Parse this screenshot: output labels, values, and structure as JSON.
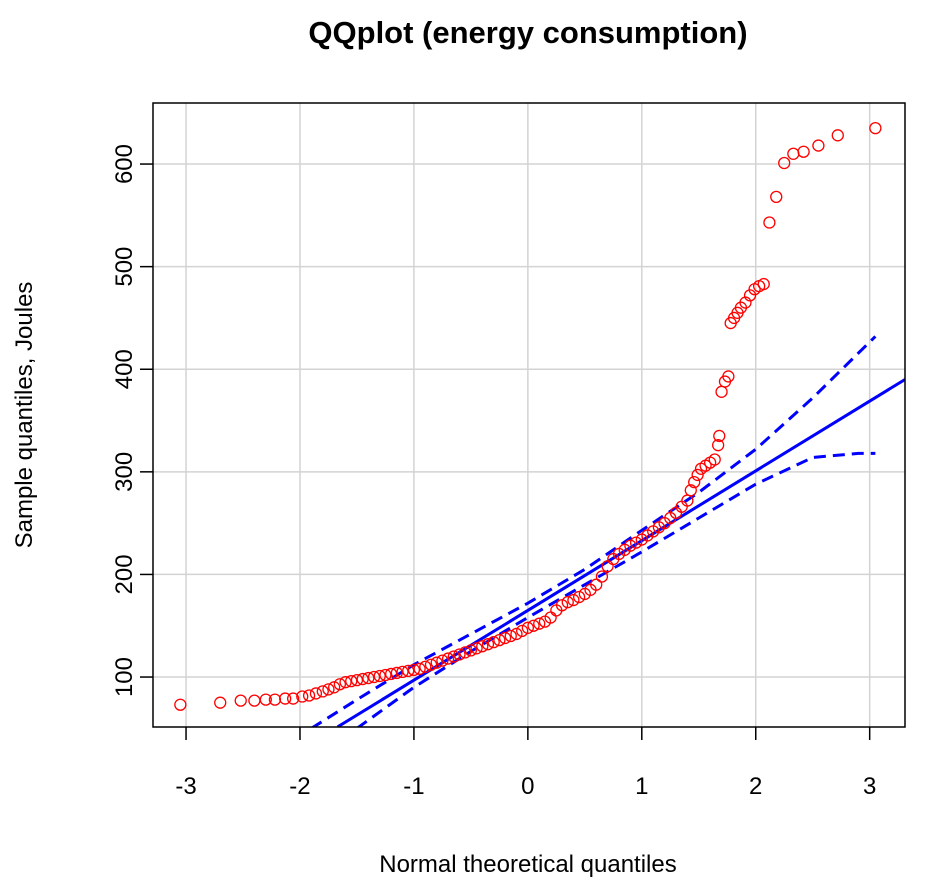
{
  "chart_data": {
    "type": "scatter",
    "title": "QQplot (energy consumption)",
    "x_label": "Normal theoretical quantiles",
    "y_label": "Sample quantiles, Joules",
    "xlim": [
      -3.29,
      3.31
    ],
    "ylim": [
      51.3,
      659.5
    ],
    "xticks": [
      -3,
      -2,
      -1,
      0,
      1,
      2,
      3
    ],
    "yticks": [
      100,
      200,
      300,
      400,
      500,
      600
    ],
    "grid": true,
    "points": {
      "color": "#ff0000",
      "x": [
        -3.05,
        -2.7,
        -2.52,
        -2.4,
        -2.3,
        -2.22,
        -2.13,
        -2.06,
        -1.98,
        -1.92,
        -1.86,
        -1.8,
        -1.75,
        -1.7,
        -1.65,
        -1.6,
        -1.55,
        -1.5,
        -1.45,
        -1.4,
        -1.35,
        -1.3,
        -1.25,
        -1.2,
        -1.15,
        -1.1,
        -1.05,
        -1.0,
        -0.95,
        -0.9,
        -0.85,
        -0.8,
        -0.75,
        -0.7,
        -0.65,
        -0.6,
        -0.55,
        -0.5,
        -0.45,
        -0.4,
        -0.35,
        -0.3,
        -0.25,
        -0.2,
        -0.15,
        -0.1,
        -0.05,
        0,
        0.05,
        0.1,
        0.15,
        0.2,
        0.25,
        0.3,
        0.35,
        0.4,
        0.45,
        0.5,
        0.55,
        0.6,
        0.65,
        0.7,
        0.75,
        0.8,
        0.85,
        0.9,
        0.95,
        1.0,
        1.05,
        1.1,
        1.15,
        1.2,
        1.25,
        1.3,
        1.35,
        1.4,
        1.43,
        1.46,
        1.49,
        1.52,
        1.56,
        1.6,
        1.64,
        1.67,
        1.68,
        1.7,
        1.73,
        1.76,
        1.78,
        1.81,
        1.84,
        1.87,
        1.91,
        1.95,
        1.99,
        2.03,
        2.07,
        2.12,
        2.18,
        2.25,
        2.33,
        2.42,
        2.55,
        2.72,
        3.05
      ],
      "y": [
        73,
        75,
        77,
        77,
        78,
        78,
        79,
        79,
        81,
        82,
        84,
        86,
        88,
        90,
        93,
        95,
        96,
        97,
        98,
        99,
        100,
        101,
        102,
        103,
        104,
        105,
        106,
        107,
        108,
        110,
        112,
        114,
        116,
        118,
        120,
        122,
        124,
        126,
        128,
        130,
        132,
        134,
        136,
        138,
        140,
        142,
        145,
        148,
        150,
        152,
        154,
        158,
        165,
        170,
        173,
        175,
        178,
        181,
        185,
        190,
        198,
        208,
        215,
        220,
        224,
        228,
        231,
        234,
        238,
        242,
        246,
        250,
        255,
        260,
        266,
        272,
        282,
        290,
        297,
        303,
        306,
        309,
        312,
        326,
        335,
        378,
        388,
        393,
        445,
        450,
        455,
        460,
        465,
        472,
        478,
        481,
        483,
        543,
        568,
        601,
        610,
        612,
        618,
        628,
        635
      ]
    },
    "reference_line": {
      "color": "#0000ff",
      "x": [
        -1.67,
        3.31
      ],
      "y": [
        51.4,
        390
      ]
    },
    "upper_band": {
      "color": "#0000ff",
      "x": [
        -1.9,
        -1.5,
        -1,
        -0.5,
        0,
        0.5,
        1,
        1.5,
        2,
        2.5,
        3.05
      ],
      "y": [
        50,
        78,
        112,
        142,
        172,
        205,
        243,
        280,
        322,
        372,
        432
      ]
    },
    "lower_band": {
      "color": "#0000ff",
      "x": [
        -1.5,
        -1,
        -0.5,
        0,
        0.5,
        1,
        1.5,
        2,
        2.5,
        2.9,
        3.05
      ],
      "y": [
        50,
        90,
        125,
        158,
        190,
        222,
        255,
        288,
        314,
        318,
        318
      ]
    }
  }
}
